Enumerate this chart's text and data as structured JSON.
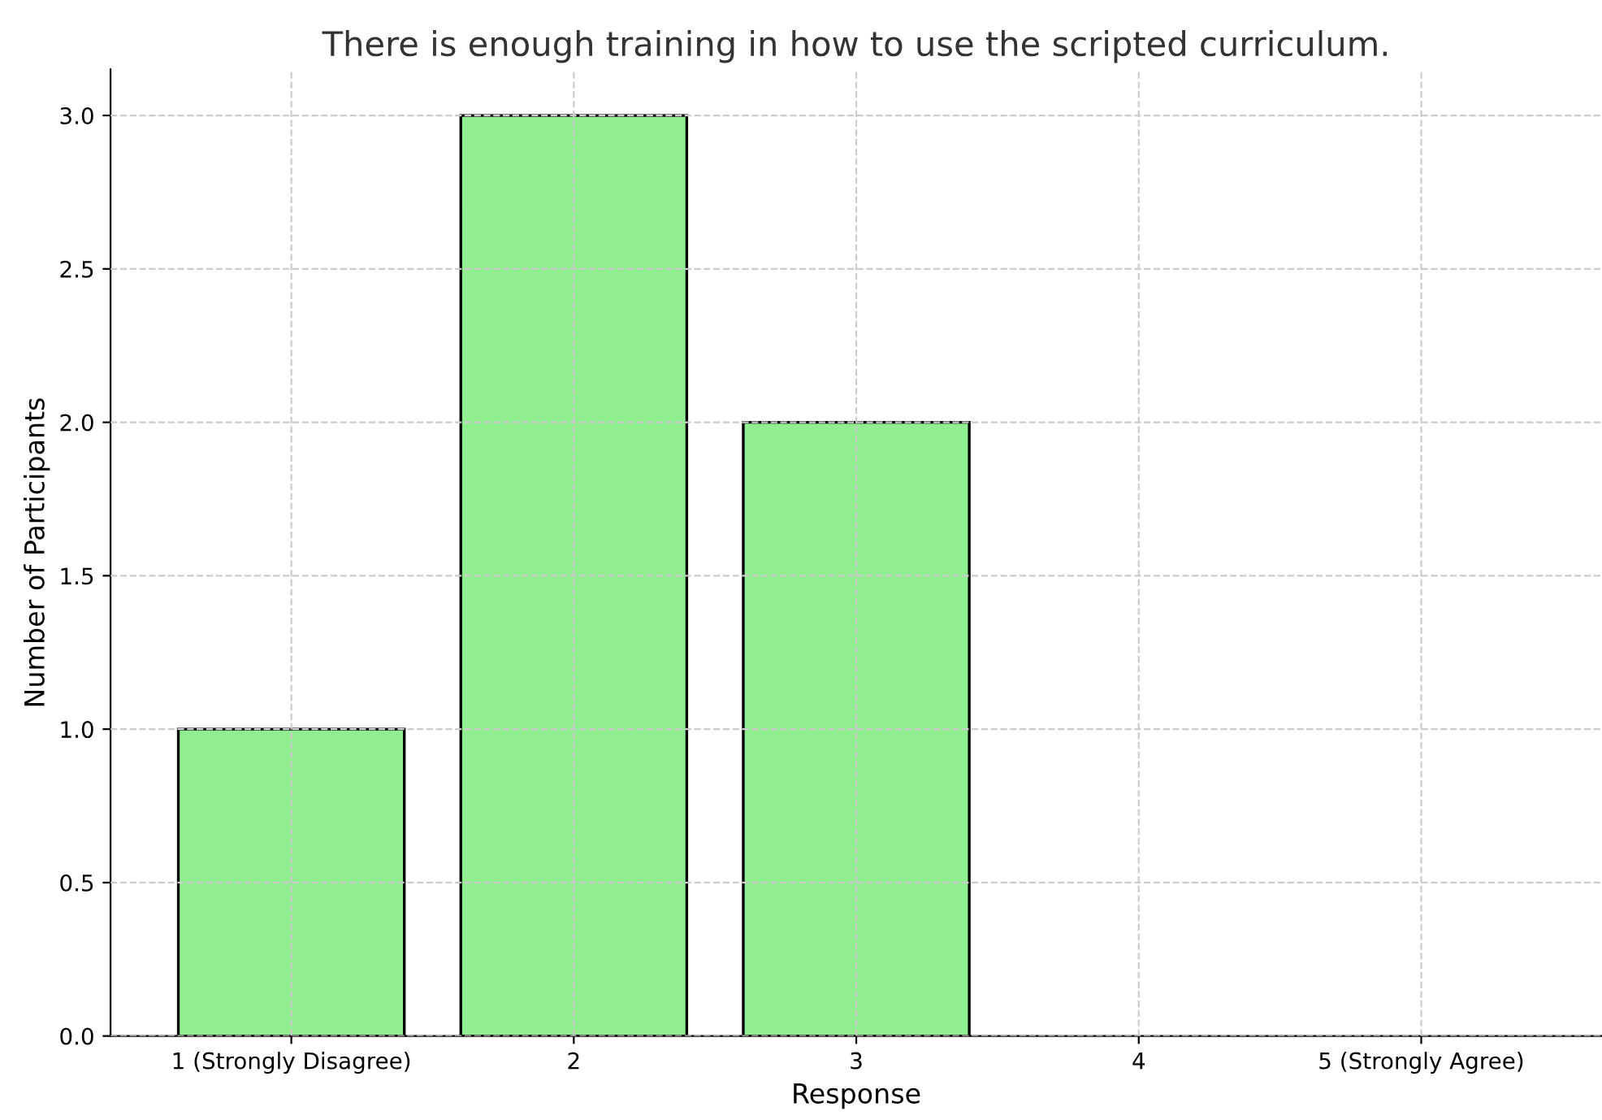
{
  "chart_data": {
    "type": "bar",
    "title": "There is enough training in how to use the scripted curriculum.",
    "xlabel": "Response",
    "ylabel": "Number of Participants",
    "categories": [
      "1 (Strongly Disagree)",
      "2",
      "3",
      "4",
      "5 (Strongly Agree)"
    ],
    "values": [
      1,
      3,
      2,
      0,
      0
    ],
    "color": "#90ee90",
    "ylim": [
      0,
      3.15
    ],
    "yticks": [
      {
        "value": 0,
        "label": "0.0"
      },
      0.5,
      {
        "value": 1,
        "label": "1.0"
      },
      1.5,
      {
        "value": 2,
        "label": "2.0"
      },
      2.5,
      {
        "value": 3,
        "label": "3.0"
      }
    ],
    "grid": true,
    "line_style": "dashed"
  }
}
